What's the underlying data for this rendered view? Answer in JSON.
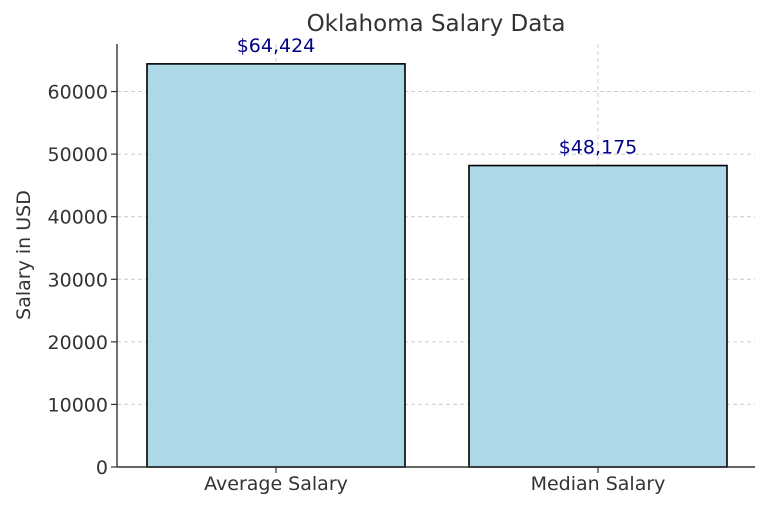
{
  "chart_data": {
    "type": "bar",
    "title": "Oklahoma Salary Data",
    "xlabel": "",
    "ylabel": "Salary in USD",
    "categories": [
      "Average Salary",
      "Median Salary"
    ],
    "values": [
      64424,
      48175
    ],
    "value_labels": [
      "$64,424",
      "$48,175"
    ],
    "ylim": [
      0,
      67600
    ],
    "yticks": [
      0,
      10000,
      20000,
      30000,
      40000,
      50000,
      60000
    ],
    "ytick_labels": [
      "0",
      "10000",
      "20000",
      "30000",
      "40000",
      "50000",
      "60000"
    ],
    "grid": true,
    "colors": {
      "bar_fill": "#add8e6",
      "bar_edge": "#000000",
      "value_label": "#00008b",
      "text": "#333333",
      "grid": "#cccccc"
    }
  }
}
